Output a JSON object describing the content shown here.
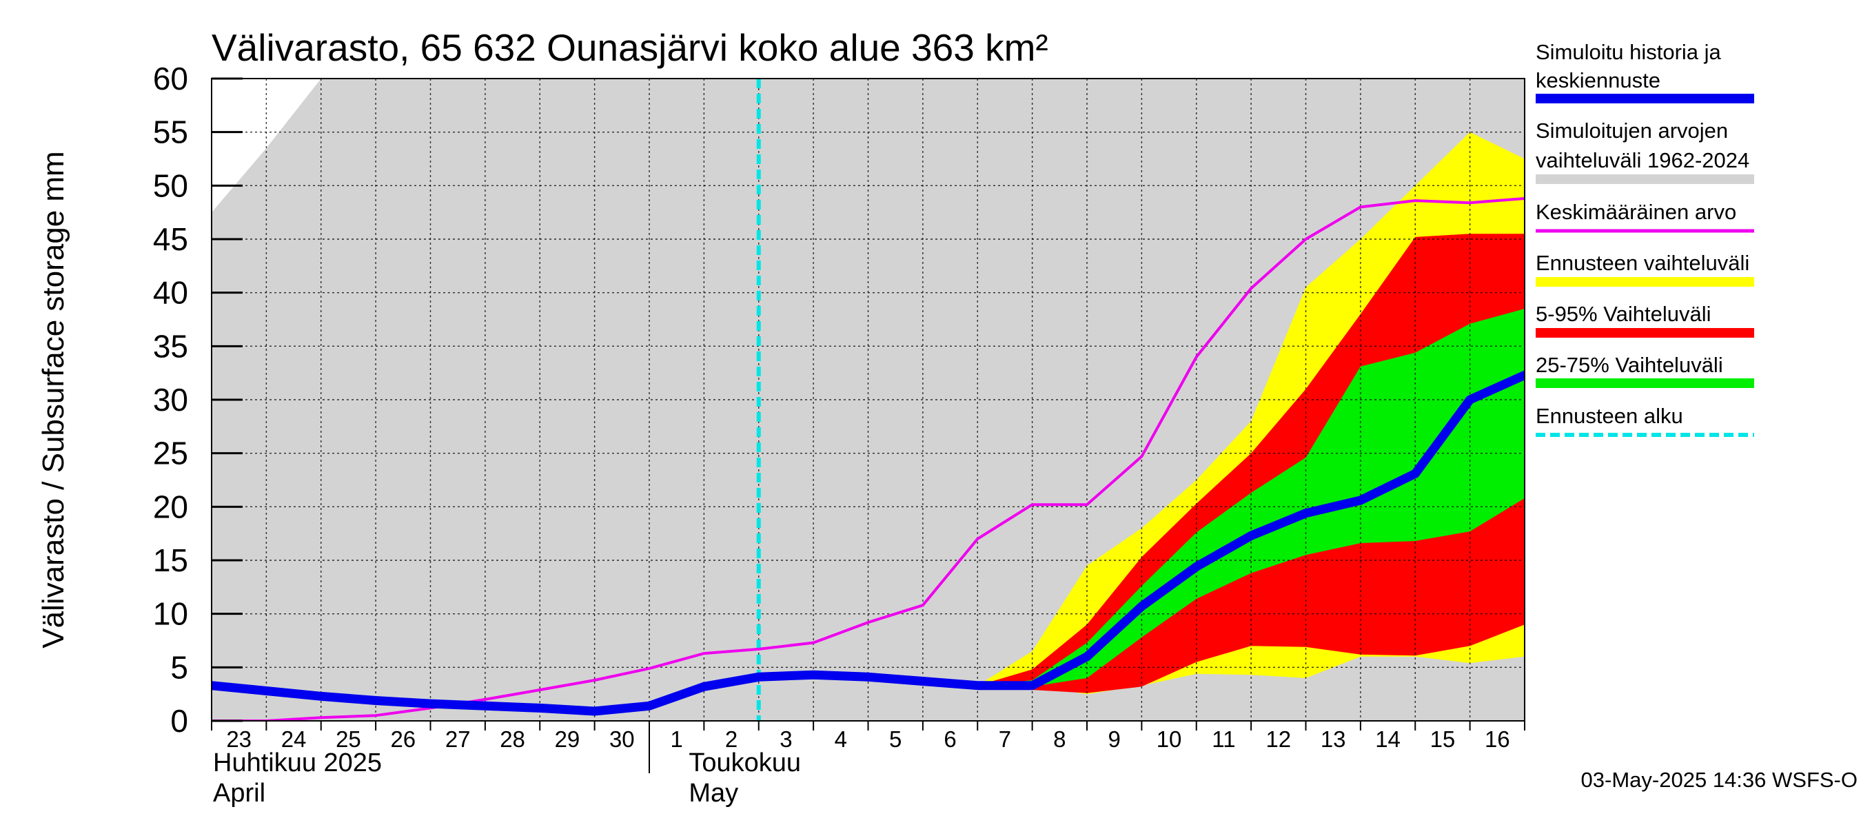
{
  "chart_data": {
    "type": "area",
    "title": "Välivarasto, 65 632 Ounasjärvi koko alue 363 km²",
    "ylabel": "Välivarasto / Subsurface storage  mm",
    "ylim": [
      0,
      60
    ],
    "yticks": [
      0,
      5,
      10,
      15,
      20,
      25,
      30,
      35,
      40,
      45,
      50,
      55,
      60
    ],
    "x_dates": [
      "2025-04-23",
      "2025-04-24",
      "2025-04-25",
      "2025-04-26",
      "2025-04-27",
      "2025-04-28",
      "2025-04-29",
      "2025-04-30",
      "2025-05-01",
      "2025-05-02",
      "2025-05-03",
      "2025-05-04",
      "2025-05-05",
      "2025-05-06",
      "2025-05-07",
      "2025-05-08",
      "2025-05-09",
      "2025-05-10",
      "2025-05-11",
      "2025-05-12",
      "2025-05-13",
      "2025-05-14",
      "2025-05-15",
      "2025-05-16",
      "2025-05-17"
    ],
    "xtick_labels": [
      "23",
      "24",
      "25",
      "26",
      "27",
      "28",
      "29",
      "30",
      "1",
      "2",
      "3",
      "4",
      "5",
      "6",
      "7",
      "8",
      "9",
      "10",
      "11",
      "12",
      "13",
      "14",
      "15",
      "16"
    ],
    "month_labels": [
      {
        "line1": "Huhtikuu  2025",
        "line2": "April"
      },
      {
        "line1": "Toukokuu",
        "line2": "May"
      }
    ],
    "grid": true,
    "legend_position": "right",
    "forecast_start": "2025-05-03",
    "series": [
      {
        "name": "Simuloitu historia ja keskiennuste",
        "color": "#0000ee",
        "kind": "line",
        "values": [
          3.3,
          2.8,
          2.3,
          1.9,
          1.6,
          1.4,
          1.2,
          0.9,
          1.4,
          3.2,
          4.1,
          4.3,
          4.1,
          3.7,
          3.3,
          3.3,
          6.0,
          10.7,
          14.4,
          17.3,
          19.4,
          20.6,
          23.1,
          30.0,
          32.3
        ]
      },
      {
        "name": "Simuloitujen arvojen vaihteluväli 1962-2024",
        "color": "#d3d3d3",
        "kind": "band",
        "lower": [
          0.0,
          0.0,
          0.0,
          0.0,
          0.0,
          0.0,
          0.0,
          0.0,
          0.0,
          0.0,
          0.0,
          0.0,
          0.0,
          0.0,
          0.0,
          0.0,
          0.0,
          0.0,
          0.0,
          0.0,
          0.0,
          0.0,
          0.0,
          0.0,
          0.0
        ],
        "upper": [
          47.5,
          53.5,
          60.0,
          60.0,
          60.0,
          60.0,
          60.0,
          60.0,
          60.0,
          60.0,
          60.0,
          60.0,
          60.0,
          60.0,
          60.0,
          60.0,
          60.0,
          60.0,
          60.0,
          60.0,
          60.0,
          60.0,
          60.0,
          60.0,
          60.0
        ]
      },
      {
        "name": "Keskimääräinen arvo",
        "color": "#ee00ee",
        "kind": "line",
        "values": [
          0.0,
          0.0,
          0.3,
          0.5,
          1.2,
          2.0,
          2.9,
          3.8,
          4.9,
          6.3,
          6.7,
          7.3,
          9.2,
          10.8,
          17.0,
          20.2,
          20.2,
          24.7,
          34.0,
          40.4,
          45.0,
          48.0,
          48.6,
          48.4,
          48.8
        ]
      },
      {
        "name": "Ennusteen vaihteluväli",
        "color": "#ffff00",
        "kind": "band",
        "lower": [
          3.3,
          3.3,
          2.5,
          3.3,
          4.4,
          4.3,
          4.0,
          6.0,
          6.0,
          5.4,
          6.0
        ],
        "upper": [
          3.3,
          6.5,
          14.5,
          18.0,
          22.5,
          28.0,
          40.5,
          45.0,
          50.0,
          55.0,
          52.5
        ]
      },
      {
        "name": "5-95% Vaihteluväli",
        "color": "#ff0000",
        "kind": "band",
        "lower": [
          3.3,
          2.9,
          2.6,
          3.2,
          5.5,
          7.0,
          6.9,
          6.2,
          6.1,
          7.0,
          9.0
        ],
        "upper": [
          3.3,
          4.8,
          9.0,
          15.3,
          20.3,
          25.0,
          31.0,
          38.0,
          45.2,
          45.5,
          45.5
        ]
      },
      {
        "name": "25-75% Vaihteluväli",
        "color": "#00ee00",
        "kind": "band",
        "lower": [
          3.3,
          3.2,
          4.0,
          7.8,
          11.4,
          13.8,
          15.5,
          16.6,
          16.8,
          17.7,
          20.8
        ],
        "upper": [
          3.3,
          3.8,
          7.3,
          12.6,
          17.6,
          21.3,
          24.6,
          33.1,
          34.4,
          37.1,
          38.5
        ]
      },
      {
        "name": "Ennusteen alku",
        "color": "#00e5e5",
        "kind": "vline"
      }
    ],
    "forecast_band_start": "2025-05-07"
  },
  "footer": "03-May-2025 14:36 WSFS-O"
}
